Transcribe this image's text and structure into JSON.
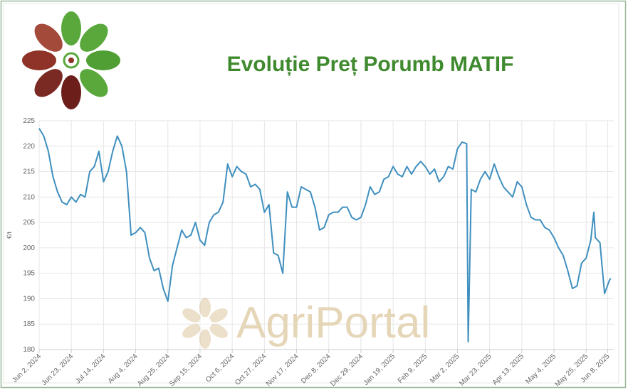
{
  "chart_data": {
    "type": "line",
    "title": "Evoluție Preț Porumb MATIF",
    "watermark": "AgriPortal",
    "y_label": "€/t",
    "x": [
      "2024-06-02",
      "2024-06-05",
      "2024-06-08",
      "2024-06-11",
      "2024-06-14",
      "2024-06-17",
      "2024-06-20",
      "2024-06-23",
      "2024-06-26",
      "2024-06-29",
      "2024-07-02",
      "2024-07-05",
      "2024-07-08",
      "2024-07-11",
      "2024-07-14",
      "2024-07-17",
      "2024-07-20",
      "2024-07-23",
      "2024-07-26",
      "2024-07-29",
      "2024-08-01",
      "2024-08-04",
      "2024-08-07",
      "2024-08-10",
      "2024-08-13",
      "2024-08-16",
      "2024-08-19",
      "2024-08-22",
      "2024-08-25",
      "2024-08-28",
      "2024-08-31",
      "2024-09-03",
      "2024-09-06",
      "2024-09-09",
      "2024-09-12",
      "2024-09-15",
      "2024-09-18",
      "2024-09-21",
      "2024-09-24",
      "2024-09-27",
      "2024-09-30",
      "2024-10-03",
      "2024-10-06",
      "2024-10-09",
      "2024-10-12",
      "2024-10-15",
      "2024-10-18",
      "2024-10-21",
      "2024-10-24",
      "2024-10-27",
      "2024-10-30",
      "2024-11-02",
      "2024-11-05",
      "2024-11-08",
      "2024-11-11",
      "2024-11-14",
      "2024-11-17",
      "2024-11-20",
      "2024-11-23",
      "2024-11-26",
      "2024-11-29",
      "2024-12-02",
      "2024-12-05",
      "2024-12-08",
      "2024-12-11",
      "2024-12-14",
      "2024-12-17",
      "2024-12-20",
      "2024-12-23",
      "2024-12-26",
      "2024-12-29",
      "2025-01-01",
      "2025-01-04",
      "2025-01-07",
      "2025-01-10",
      "2025-01-13",
      "2025-01-16",
      "2025-01-19",
      "2025-01-22",
      "2025-01-25",
      "2025-01-28",
      "2025-01-31",
      "2025-02-03",
      "2025-02-06",
      "2025-02-09",
      "2025-02-12",
      "2025-02-15",
      "2025-02-18",
      "2025-02-21",
      "2025-02-24",
      "2025-02-27",
      "2025-03-02",
      "2025-03-05",
      "2025-03-08",
      "2025-03-09",
      "2025-03-11",
      "2025-03-14",
      "2025-03-17",
      "2025-03-20",
      "2025-03-23",
      "2025-03-26",
      "2025-03-29",
      "2025-04-01",
      "2025-04-04",
      "2025-04-07",
      "2025-04-10",
      "2025-04-13",
      "2025-04-16",
      "2025-04-19",
      "2025-04-22",
      "2025-04-25",
      "2025-04-28",
      "2025-05-01",
      "2025-05-04",
      "2025-05-07",
      "2025-05-10",
      "2025-05-13",
      "2025-05-16",
      "2025-05-19",
      "2025-05-22",
      "2025-05-25",
      "2025-05-28",
      "2025-05-30",
      "2025-05-31",
      "2025-06-03",
      "2025-06-06",
      "2025-06-09",
      "2025-06-10"
    ],
    "series": [
      {
        "name": "Porumb MATIF",
        "color": "#3f8fbf",
        "values": [
          223.5,
          222,
          219,
          214,
          211,
          209,
          208.5,
          210,
          209,
          210.5,
          210,
          215,
          216,
          219,
          213,
          215,
          219,
          222,
          220,
          215,
          202.5,
          203,
          204,
          203,
          198,
          195.5,
          196,
          192,
          189.5,
          196.5,
          200,
          203.5,
          202,
          202.5,
          205,
          201.5,
          200.5,
          205,
          206.5,
          207,
          209,
          216.5,
          214,
          216,
          215,
          214.5,
          212,
          212.5,
          211.5,
          207,
          208.5,
          199,
          198.5,
          195,
          211,
          208,
          208,
          212,
          211.5,
          211,
          208,
          203.5,
          204,
          206.5,
          207,
          207,
          208,
          208,
          206,
          205.5,
          206,
          208.5,
          212,
          210.5,
          211,
          213.5,
          214,
          216,
          214.5,
          214,
          216,
          214.5,
          216,
          217,
          216,
          214.5,
          215.5,
          213,
          214,
          216,
          215.5,
          219.5,
          220.8,
          220.5,
          181.5,
          211.5,
          211,
          213.5,
          215,
          213.5,
          216.5,
          214,
          212,
          211,
          210,
          213,
          212,
          208.5,
          206,
          205.5,
          205.5,
          204,
          203.5,
          202,
          200,
          198.5,
          195.5,
          192,
          192.5,
          197,
          198,
          201.5,
          207,
          202,
          201,
          191,
          193.5,
          194
        ]
      }
    ],
    "xlim": [
      "2024-06-02",
      "2025-06-12"
    ],
    "xticks": [
      {
        "value": "2024-06-02",
        "label": "Jun 2, 2024"
      },
      {
        "value": "2024-06-23",
        "label": "Jun 23, 2024"
      },
      {
        "value": "2024-07-14",
        "label": "Jul 14, 2024"
      },
      {
        "value": "2024-08-04",
        "label": "Aug 4, 2024"
      },
      {
        "value": "2024-08-25",
        "label": "Aug 25, 2024"
      },
      {
        "value": "2024-09-15",
        "label": "Sep 15, 2024"
      },
      {
        "value": "2024-10-06",
        "label": "Oct 6, 2024"
      },
      {
        "value": "2024-10-27",
        "label": "Oct 27, 2024"
      },
      {
        "value": "2024-11-17",
        "label": "Nov 17, 2024"
      },
      {
        "value": "2024-12-08",
        "label": "Dec 8, 2024"
      },
      {
        "value": "2024-12-29",
        "label": "Dec 29, 2024"
      },
      {
        "value": "2025-01-19",
        "label": "Jan 19, 2025"
      },
      {
        "value": "2025-02-09",
        "label": "Feb 9, 2025"
      },
      {
        "value": "2025-03-02",
        "label": "Mar 2, 2025"
      },
      {
        "value": "2025-03-23",
        "label": "Mar 23, 2025"
      },
      {
        "value": "2025-04-13",
        "label": "Apr 13, 2025"
      },
      {
        "value": "2025-05-04",
        "label": "May 4, 2025"
      },
      {
        "value": "2025-05-25",
        "label": "May 25, 2025"
      },
      {
        "value": "2025-06-08",
        "label": "Jun 8, 2025"
      }
    ],
    "ylim": [
      180,
      225
    ],
    "yticks": [
      180,
      185,
      190,
      195,
      200,
      205,
      210,
      215,
      220,
      225
    ],
    "grid": true
  }
}
